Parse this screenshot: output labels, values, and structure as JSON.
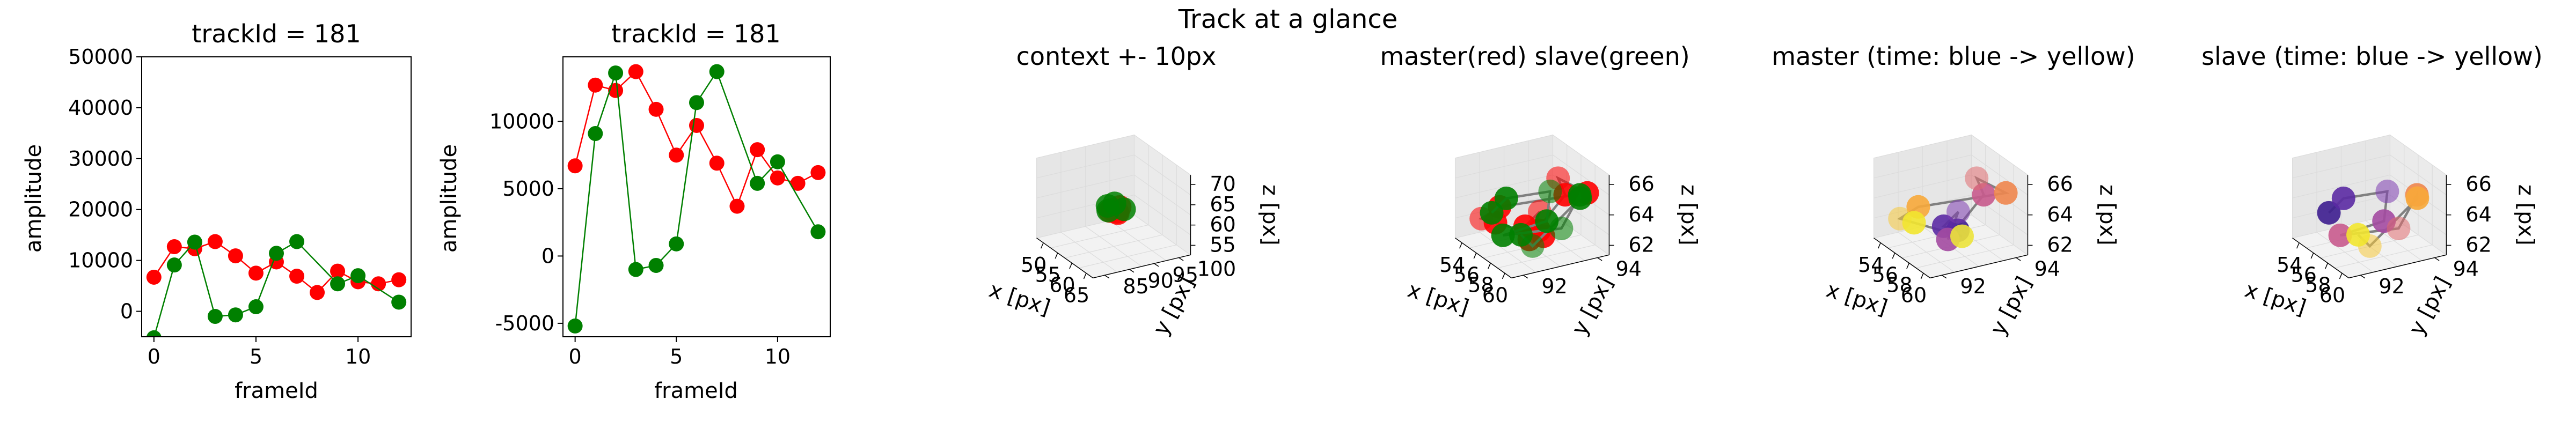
{
  "suptitle": "Track at a glance",
  "colors": {
    "master": "#ff0000",
    "slave": "#008000",
    "link3d": "#808080",
    "pane": "#f2f2f2",
    "grid": "#dcdcdc"
  },
  "chart_data": [
    {
      "type": "line",
      "title": "trackId = 181",
      "xlabel": "frameId",
      "ylabel": "amplitude",
      "xlim": [
        -0.6,
        12.6
      ],
      "ylim": [
        -5000,
        50000
      ],
      "xticks": [
        "0",
        "5",
        "10"
      ],
      "yticks": [
        "0",
        "10000",
        "20000",
        "30000",
        "40000",
        "50000"
      ],
      "series": [
        {
          "color": "#ff0000",
          "x": [
            0,
            1,
            2,
            3,
            4,
            5,
            6,
            7,
            8,
            9,
            10,
            11,
            12
          ],
          "values": [
            6700,
            12700,
            12300,
            13700,
            10900,
            7500,
            9700,
            6900,
            3700,
            7900,
            5800,
            5400,
            6200
          ]
        },
        {
          "color": "#008000",
          "x": [
            0,
            1,
            2,
            3,
            4,
            5,
            6,
            7,
            9,
            10,
            12
          ],
          "values": [
            -5200,
            9100,
            13600,
            -1000,
            -700,
            900,
            11400,
            13700,
            5400,
            7000,
            1800
          ]
        }
      ]
    },
    {
      "type": "line",
      "title": "trackId = 181",
      "xlabel": "frameId",
      "ylabel": "amplitude",
      "xlim": [
        -0.6,
        12.6
      ],
      "ylim": [
        -6000,
        14800
      ],
      "xticks": [
        "0",
        "5",
        "10"
      ],
      "yticks": [
        "-5000",
        "0",
        "5000",
        "10000"
      ],
      "series": [
        {
          "color": "#ff0000",
          "x": [
            0,
            1,
            2,
            3,
            4,
            5,
            6,
            7,
            8,
            9,
            10,
            11,
            12
          ],
          "values": [
            6700,
            12700,
            12300,
            13700,
            10900,
            7500,
            9700,
            6900,
            3700,
            7900,
            5800,
            5400,
            6200
          ]
        },
        {
          "color": "#008000",
          "x": [
            0,
            1,
            2,
            3,
            4,
            5,
            6,
            7,
            9,
            10,
            12
          ],
          "values": [
            -5200,
            9100,
            13600,
            -1000,
            -700,
            900,
            11400,
            13700,
            5400,
            7000,
            1800
          ]
        }
      ]
    },
    {
      "type": "scatter",
      "title": "context +- 10px",
      "xlabel": "x [px]",
      "ylabel": "y [px]",
      "zlabel": "z [px]",
      "xticks": [
        "50",
        "55",
        "60",
        "65"
      ],
      "yticks": [
        "85",
        "90",
        "95",
        "100"
      ],
      "zticks": [
        "55",
        "60",
        "65",
        "70"
      ],
      "points": [
        {
          "color": "#ff0000",
          "x": 58,
          "y": 92,
          "z": 62
        },
        {
          "color": "#ff0000",
          "x": 59,
          "y": 93,
          "z": 63
        },
        {
          "color": "#ff0000",
          "x": 57,
          "y": 92,
          "z": 61
        },
        {
          "color": "#ff0000",
          "x": 58,
          "y": 93,
          "z": 61
        },
        {
          "color": "#ff0000",
          "x": 60,
          "y": 92,
          "z": 62
        },
        {
          "color": "#008000",
          "x": 57,
          "y": 93,
          "z": 63
        },
        {
          "color": "#008000",
          "x": 56,
          "y": 92,
          "z": 62
        },
        {
          "color": "#008000",
          "x": 59,
          "y": 94,
          "z": 62
        },
        {
          "color": "#008000",
          "x": 58,
          "y": 91,
          "z": 62
        }
      ]
    },
    {
      "type": "scatter",
      "title": "master(red) slave(green)",
      "xlabel": "x [px]",
      "ylabel": "y [px]",
      "zlabel": "z [px]",
      "xticks": [
        "54",
        "56",
        "58",
        "60"
      ],
      "yticks": [
        "92",
        "94"
      ],
      "zticks": [
        "62",
        "64",
        "66"
      ]
    },
    {
      "type": "scatter",
      "title": "master (time: blue -> yellow)",
      "xlabel": "x [px]",
      "ylabel": "y [px]",
      "zlabel": "z [px]",
      "xticks": [
        "54",
        "56",
        "58",
        "60"
      ],
      "yticks": [
        "92",
        "94"
      ],
      "zticks": [
        "62",
        "64",
        "66"
      ]
    },
    {
      "type": "scatter",
      "title": "slave (time: blue -> yellow)",
      "xlabel": "x [px]",
      "ylabel": "y [px]",
      "zlabel": "z [px]",
      "xticks": [
        "54",
        "56",
        "58",
        "60"
      ],
      "yticks": [
        "92",
        "94"
      ],
      "zticks": [
        "62",
        "64",
        "66"
      ]
    }
  ]
}
